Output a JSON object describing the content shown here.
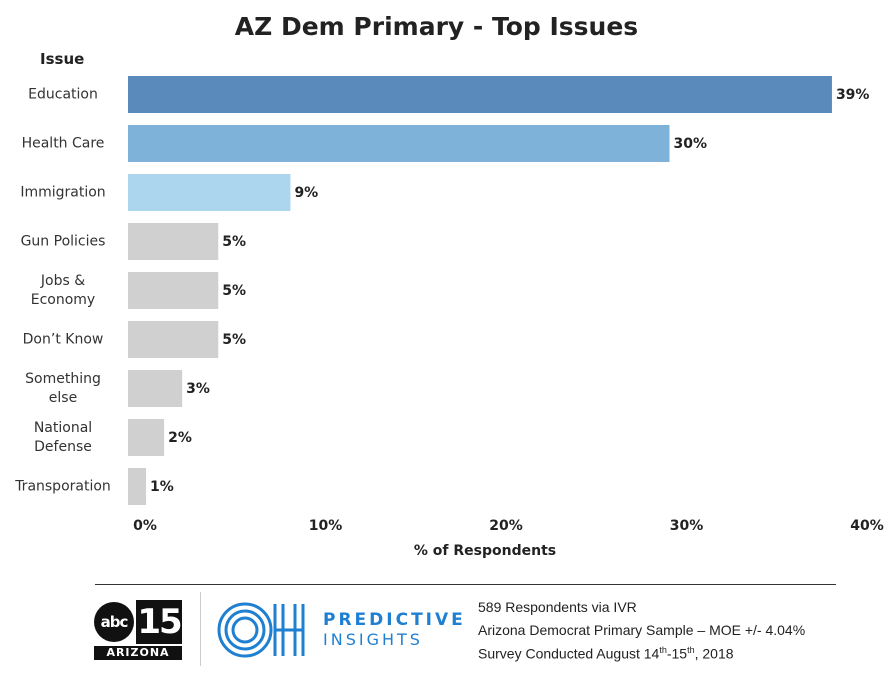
{
  "chart_data": {
    "type": "bar",
    "orientation": "horizontal",
    "title": "AZ Dem Primary - Top Issues",
    "category_header": "Issue",
    "xlabel": "% of Respondents",
    "categories": [
      "Education",
      "Health Care",
      "Immigration",
      "Gun Policies",
      "Jobs &\nEconomy",
      "Don’t Know",
      "Something\nelse",
      "National\nDefense",
      "Transporation"
    ],
    "values": [
      39,
      30,
      9,
      5,
      5,
      5,
      3,
      2,
      1
    ],
    "value_labels": [
      "39%",
      "30%",
      "9%",
      "5%",
      "5%",
      "5%",
      "3%",
      "2%",
      "1%"
    ],
    "bar_colors": [
      "#5a8abb",
      "#7fb2d8",
      "#acd6ee",
      "#d0d0d0",
      "#d0d0d0",
      "#d0d0d0",
      "#d0d0d0",
      "#d0d0d0",
      "#d0d0d0"
    ],
    "xlim": [
      0,
      40
    ],
    "xticks": [
      0,
      10,
      20,
      30,
      40
    ],
    "xtick_labels": [
      "0%",
      "10%",
      "20%",
      "30%",
      "40%"
    ],
    "grid": false,
    "legend": "none"
  },
  "footer": {
    "logo_abc_text": "abc",
    "logo_abc_number": "15",
    "logo_abc_region": "ARIZONA",
    "logo_oh_text": "OH",
    "logo_pi_line1": "PREDICTIVE",
    "logo_pi_line2": "INSIGHTS",
    "note_line1": "589 Respondents via IVR",
    "note_line2": "Arizona Democrat Primary Sample – MOE +/- 4.04%",
    "note_line3_pre": "Survey Conducted August 14",
    "note_line3_sup1": "th",
    "note_line3_mid": "-15",
    "note_line3_sup2": "th",
    "note_line3_post": ", 2018"
  },
  "colors": {
    "brand_blue": "#1f7fd1",
    "abc_black": "#111111"
  }
}
